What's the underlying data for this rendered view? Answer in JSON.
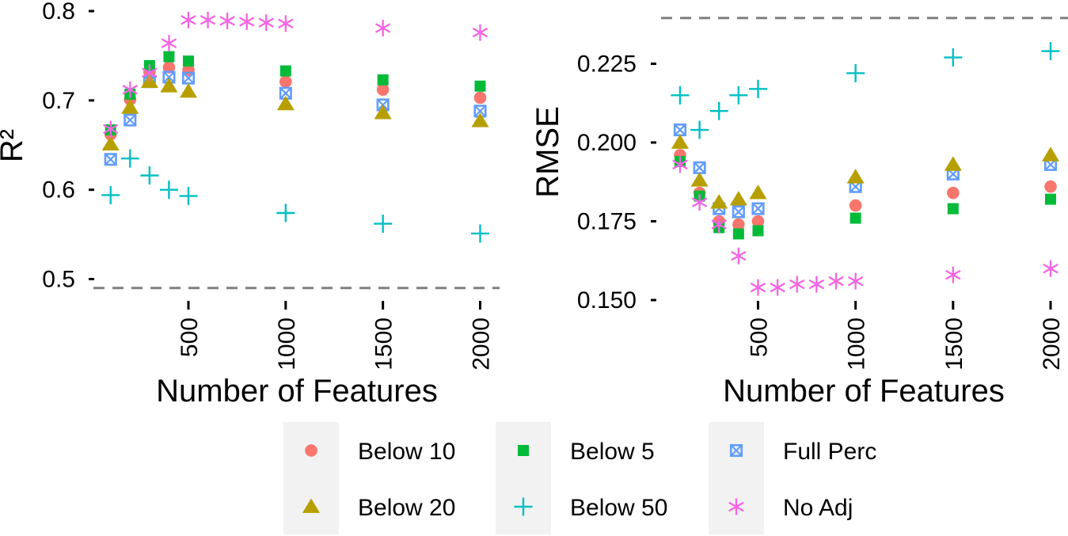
{
  "legend": {
    "position": "bottom",
    "entries": [
      {
        "name": "Below 10",
        "color": "#F8766D",
        "shape": "circle"
      },
      {
        "name": "Below 5",
        "color": "#00BA38",
        "shape": "square"
      },
      {
        "name": "Full Perc",
        "color": "#619CFF",
        "shape": "square-cross"
      },
      {
        "name": "Below 20",
        "color": "#B79F00",
        "shape": "triangle"
      },
      {
        "name": "Below 50",
        "color": "#00BFC4",
        "shape": "plus"
      },
      {
        "name": "No Adj",
        "color": "#F564E3",
        "shape": "asterisk"
      }
    ]
  },
  "chart_data": [
    {
      "type": "scatter",
      "xlabel": "Number of Features",
      "ylabel": "R²",
      "x_ticks": [
        500,
        1000,
        1500,
        2000
      ],
      "y_ticks": [
        0.5,
        0.6,
        0.7,
        0.8
      ],
      "ylim": [
        0.48,
        0.81
      ],
      "grid": false,
      "reference_line": {
        "y": 0.49,
        "style": "dashed",
        "color": "#808080"
      },
      "series": [
        {
          "name": "Below 10",
          "x": [
            100,
            200,
            300,
            400,
            500,
            1000,
            1500,
            2000
          ],
          "y": [
            0.662,
            0.701,
            0.732,
            0.737,
            0.734,
            0.721,
            0.712,
            0.703
          ]
        },
        {
          "name": "Below 5",
          "x": [
            100,
            200,
            300,
            400,
            500,
            1000,
            1500,
            2000
          ],
          "y": [
            0.667,
            0.707,
            0.739,
            0.749,
            0.744,
            0.733,
            0.723,
            0.716
          ]
        },
        {
          "name": "Full Perc",
          "x": [
            100,
            200,
            300,
            400,
            500,
            1000,
            1500,
            2000
          ],
          "y": [
            0.634,
            0.678,
            0.721,
            0.726,
            0.725,
            0.708,
            0.695,
            0.688
          ]
        },
        {
          "name": "Below 20",
          "x": [
            100,
            200,
            300,
            400,
            500,
            1000,
            1500,
            2000
          ],
          "y": [
            0.651,
            0.692,
            0.721,
            0.716,
            0.71,
            0.696,
            0.686,
            0.677
          ]
        },
        {
          "name": "Below 50",
          "x": [
            100,
            200,
            300,
            400,
            500,
            1000,
            1500,
            2000
          ],
          "y": [
            0.594,
            0.635,
            0.616,
            0.6,
            0.593,
            0.574,
            0.562,
            0.551
          ]
        },
        {
          "name": "No Adj",
          "x": [
            100,
            200,
            300,
            400,
            500,
            600,
            700,
            800,
            900,
            1000,
            1500,
            2000
          ],
          "y": [
            0.668,
            0.712,
            0.731,
            0.764,
            0.79,
            0.79,
            0.789,
            0.788,
            0.787,
            0.786,
            0.781,
            0.776
          ]
        }
      ]
    },
    {
      "type": "scatter",
      "xlabel": "Number of Features",
      "ylabel": "RMSE",
      "x_ticks": [
        500,
        1000,
        1500,
        2000
      ],
      "y_ticks": [
        0.15,
        0.175,
        0.2,
        0.225
      ],
      "y_tick_labels": [
        "0.150",
        "0.175",
        "0.200",
        "0.225"
      ],
      "ylim": [
        0.147,
        0.241
      ],
      "grid": false,
      "reference_line": {
        "y": 0.2395,
        "style": "dashed",
        "color": "#808080"
      },
      "series": [
        {
          "name": "Below 10",
          "x": [
            100,
            200,
            300,
            400,
            500,
            1000,
            1500,
            2000
          ],
          "y": [
            0.196,
            0.184,
            0.175,
            0.174,
            0.175,
            0.18,
            0.184,
            0.186
          ]
        },
        {
          "name": "Below 5",
          "x": [
            100,
            200,
            300,
            400,
            500,
            1000,
            1500,
            2000
          ],
          "y": [
            0.194,
            0.183,
            0.173,
            0.171,
            0.172,
            0.176,
            0.179,
            0.182
          ]
        },
        {
          "name": "Full Perc",
          "x": [
            100,
            200,
            300,
            400,
            500,
            1000,
            1500,
            2000
          ],
          "y": [
            0.204,
            0.192,
            0.179,
            0.178,
            0.179,
            0.186,
            0.19,
            0.193
          ]
        },
        {
          "name": "Below 20",
          "x": [
            100,
            200,
            300,
            400,
            500,
            1000,
            1500,
            2000
          ],
          "y": [
            0.2,
            0.188,
            0.181,
            0.182,
            0.184,
            0.189,
            0.193,
            0.196
          ]
        },
        {
          "name": "Below 50",
          "x": [
            100,
            200,
            300,
            400,
            500,
            1000,
            1500,
            2000
          ],
          "y": [
            0.215,
            0.204,
            0.21,
            0.215,
            0.217,
            0.222,
            0.227,
            0.229
          ]
        },
        {
          "name": "No Adj",
          "x": [
            100,
            200,
            300,
            400,
            500,
            600,
            700,
            800,
            900,
            1000,
            1500,
            2000
          ],
          "y": [
            0.193,
            0.181,
            0.174,
            0.164,
            0.154,
            0.154,
            0.155,
            0.155,
            0.156,
            0.156,
            0.158,
            0.16
          ]
        }
      ]
    }
  ]
}
